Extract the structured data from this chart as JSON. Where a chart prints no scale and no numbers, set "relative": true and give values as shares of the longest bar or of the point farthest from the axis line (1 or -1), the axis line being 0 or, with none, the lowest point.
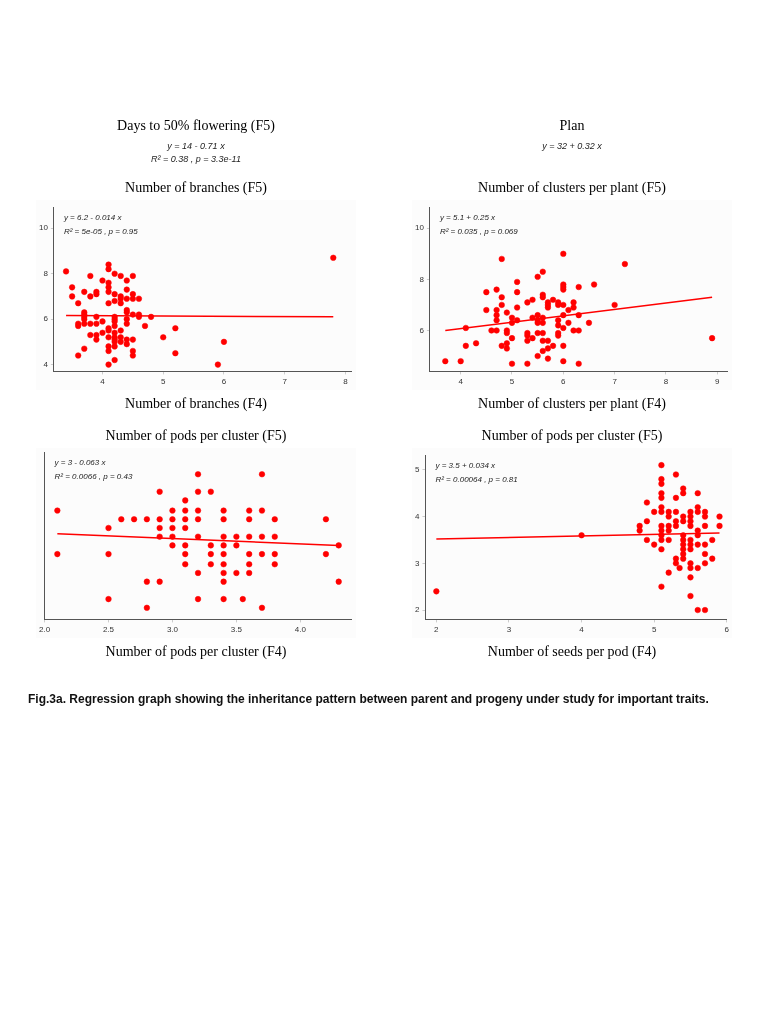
{
  "chart_data": [
    {
      "type": "other",
      "ylabel": "Days to 50% flowering (F5)",
      "annotations": [
        "y = 14 - 0.71 x",
        "R² = 0.38 , p = 3.3e-11"
      ]
    },
    {
      "type": "other",
      "ylabel": "Plan",
      "annotations": [
        "y = 32 + 0.32 x"
      ]
    },
    {
      "type": "scatter",
      "ylabel": "Number of branches (F5)",
      "xlabel": "Number of branches (F4)",
      "xlim": [
        3.2,
        8.1
      ],
      "xticks": [
        4,
        5,
        6,
        7,
        8
      ],
      "ylim": [
        3.7,
        10.9
      ],
      "yticks": [
        4,
        6,
        8,
        10
      ],
      "marker": "circle",
      "annotations": [
        "y = 6.2 - 0.014 x",
        "R² = 5e-05 , p = 0.95"
      ],
      "series": [
        {
          "type": "scatter",
          "color": "#ff0000",
          "x": [
            3.4,
            3.5,
            3.5,
            3.6,
            3.6,
            3.6,
            3.6,
            3.7,
            3.7,
            3.7,
            3.7,
            3.7,
            3.7,
            3.7,
            3.8,
            3.8,
            3.8,
            3.8,
            3.9,
            3.9,
            3.9,
            3.9,
            3.9,
            3.9,
            4.0,
            4.0,
            4.0,
            4.1,
            4.1,
            4.1,
            4.1,
            4.1,
            4.1,
            4.1,
            4.1,
            4.1,
            4.1,
            4.1,
            4.1,
            4.2,
            4.2,
            4.2,
            4.2,
            4.2,
            4.2,
            4.2,
            4.2,
            4.2,
            4.2,
            4.2,
            4.2,
            4.2,
            4.3,
            4.3,
            4.3,
            4.3,
            4.3,
            4.3,
            4.3,
            4.4,
            4.4,
            4.4,
            4.4,
            4.4,
            4.4,
            4.4,
            4.4,
            4.4,
            4.5,
            4.5,
            4.5,
            4.5,
            4.5,
            4.5,
            4.5,
            4.6,
            4.6,
            4.6,
            4.7,
            4.8,
            5.0,
            5.2,
            5.2,
            6.0,
            5.9,
            7.8
          ],
          "values": [
            8.1,
            7.4,
            7.0,
            6.7,
            5.8,
            5.7,
            4.4,
            7.2,
            6.3,
            6.2,
            6.1,
            6.0,
            5.8,
            4.7,
            7.9,
            7.0,
            5.8,
            5.3,
            7.2,
            7.1,
            6.1,
            5.8,
            5.3,
            5.1,
            7.7,
            5.9,
            5.4,
            8.4,
            8.2,
            7.6,
            7.4,
            7.2,
            6.7,
            5.6,
            5.5,
            5.2,
            4.8,
            4.6,
            4.0,
            8.0,
            7.1,
            6.8,
            6.1,
            6.0,
            5.9,
            5.7,
            5.4,
            5.2,
            5.1,
            5.0,
            4.8,
            4.2,
            7.9,
            7.0,
            6.9,
            6.7,
            5.5,
            5.2,
            5.0,
            7.7,
            7.3,
            6.9,
            6.4,
            6.3,
            6.0,
            5.8,
            5.1,
            4.9,
            7.9,
            7.1,
            6.9,
            6.2,
            5.1,
            4.6,
            4.4,
            6.9,
            6.2,
            6.1,
            5.7,
            6.1,
            5.2,
            5.6,
            4.5,
            5.0,
            4.0,
            8.7
          ]
        },
        {
          "type": "line",
          "marker": "none",
          "color": "#ff0000",
          "x": [
            3.4,
            7.8
          ],
          "values": [
            6.16,
            6.1
          ]
        }
      ]
    },
    {
      "type": "scatter",
      "ylabel": "Number of clusters per plant (F5)",
      "xlabel": "Number of clusters per plant (F4)",
      "xlim": [
        3.4,
        9.2
      ],
      "xticks": [
        4,
        5,
        6,
        7,
        8,
        9
      ],
      "ylim": [
        4.4,
        10.8
      ],
      "yticks": [
        6,
        8,
        10
      ],
      "marker": "circle",
      "annotations": [
        "y = 5.1 + 0.25 x",
        "R² = 0.035 , p = 0.069"
      ],
      "series": [
        {
          "type": "scatter",
          "color": "#ff0000",
          "x": [
            3.7,
            4.0,
            4.1,
            4.1,
            4.3,
            4.5,
            4.5,
            4.6,
            4.7,
            4.7,
            4.7,
            4.7,
            4.7,
            4.8,
            4.8,
            4.8,
            4.8,
            4.9,
            4.9,
            4.9,
            4.9,
            4.9,
            5.0,
            5.0,
            5.0,
            5.0,
            5.1,
            5.1,
            5.1,
            5.1,
            5.3,
            5.3,
            5.3,
            5.3,
            5.3,
            5.4,
            5.4,
            5.4,
            5.5,
            5.5,
            5.5,
            5.5,
            5.5,
            5.5,
            5.6,
            5.6,
            5.6,
            5.6,
            5.6,
            5.6,
            5.6,
            5.6,
            5.7,
            5.7,
            5.7,
            5.7,
            5.7,
            5.7,
            5.8,
            5.8,
            5.9,
            5.9,
            5.9,
            5.9,
            5.9,
            5.9,
            6.0,
            6.0,
            6.0,
            6.0,
            6.0,
            6.0,
            6.0,
            6.0,
            6.0,
            6.1,
            6.1,
            6.2,
            6.2,
            6.2,
            6.3,
            6.3,
            6.3,
            6.3,
            6.5,
            6.6,
            7.0,
            7.2,
            8.9
          ],
          "values": [
            4.8,
            4.8,
            6.1,
            5.4,
            5.5,
            7.5,
            6.8,
            6.0,
            7.6,
            6.8,
            6.6,
            6.4,
            6.0,
            8.8,
            7.3,
            7.0,
            5.4,
            6.7,
            6.0,
            5.9,
            5.5,
            5.3,
            6.5,
            6.3,
            5.7,
            4.7,
            7.9,
            7.5,
            6.9,
            6.4,
            7.1,
            5.9,
            5.8,
            5.6,
            4.7,
            7.2,
            6.5,
            5.7,
            8.1,
            6.6,
            6.4,
            6.3,
            5.9,
            5.0,
            8.3,
            7.4,
            7.3,
            6.5,
            6.3,
            5.9,
            5.6,
            5.2,
            7.1,
            7.0,
            6.9,
            5.6,
            5.3,
            4.9,
            7.2,
            5.4,
            7.1,
            7.0,
            6.4,
            6.2,
            5.9,
            5.8,
            9.0,
            7.8,
            7.7,
            7.6,
            7.0,
            6.6,
            6.1,
            5.4,
            4.8,
            6.8,
            6.3,
            7.1,
            6.9,
            6.0,
            7.7,
            6.6,
            6.0,
            4.7,
            6.3,
            7.8,
            7.0,
            8.6,
            5.7
          ]
        },
        {
          "type": "line",
          "marker": "none",
          "color": "#ff0000",
          "x": [
            3.7,
            8.9
          ],
          "values": [
            6.0,
            7.3
          ]
        }
      ]
    },
    {
      "type": "scatter",
      "ylabel": "Number of pods per cluster (F5)",
      "xlabel": "Number of pods per cluster (F4)",
      "xlim": [
        2.0,
        4.4
      ],
      "xticks": [
        {
          "value": 2,
          "label": "2.0"
        },
        2.5,
        {
          "value": 3,
          "label": "3.0"
        },
        3.5,
        {
          "value": 4,
          "label": "4.0"
        }
      ],
      "relative": true,
      "marker": "circle",
      "annotations": [
        "y = 3 - 0.063 x",
        "R² = 0.0066 , p = 0.43"
      ],
      "series": [
        {
          "type": "scatter",
          "color": "#ff0000",
          "x": [
            2.1,
            2.1,
            2.5,
            2.5,
            2.5,
            2.6,
            2.7,
            2.8,
            2.8,
            2.8,
            2.9,
            2.9,
            2.9,
            2.9,
            2.9,
            3.0,
            3.0,
            3.0,
            3.0,
            3.0,
            3.1,
            3.1,
            3.1,
            3.1,
            3.1,
            3.1,
            3.1,
            3.2,
            3.2,
            3.2,
            3.2,
            3.2,
            3.2,
            3.2,
            3.3,
            3.3,
            3.3,
            3.3,
            3.4,
            3.4,
            3.4,
            3.4,
            3.4,
            3.4,
            3.4,
            3.4,
            3.4,
            3.5,
            3.5,
            3.5,
            3.55,
            3.6,
            3.6,
            3.6,
            3.6,
            3.6,
            3.6,
            3.7,
            3.7,
            3.7,
            3.7,
            3.7,
            3.8,
            3.8,
            3.8,
            3.8,
            4.2,
            4.2,
            4.3,
            4.3
          ],
          "values": [
            0.75,
            0.45,
            0.63,
            0.45,
            0.14,
            0.69,
            0.69,
            0.69,
            0.26,
            0.08,
            0.88,
            0.69,
            0.63,
            0.57,
            0.26,
            0.75,
            0.69,
            0.63,
            0.57,
            0.51,
            0.82,
            0.75,
            0.69,
            0.63,
            0.51,
            0.45,
            0.38,
            1,
            0.88,
            0.75,
            0.69,
            0.57,
            0.32,
            0.14,
            0.88,
            0.51,
            0.45,
            0.38,
            0.75,
            0.69,
            0.57,
            0.51,
            0.45,
            0.38,
            0.32,
            0.26,
            0.14,
            0.57,
            0.51,
            0.32,
            0.14,
            0.75,
            0.69,
            0.57,
            0.45,
            0.38,
            0.32,
            1,
            0.75,
            0.57,
            0.45,
            0.08,
            0.69,
            0.57,
            0.45,
            0.38,
            0.69,
            0.45,
            0.51,
            0.26
          ]
        },
        {
          "type": "line",
          "marker": "none",
          "color": "#ff0000",
          "x": [
            2.1,
            4.3
          ],
          "values": [
            0.59,
            0.51
          ]
        }
      ]
    },
    {
      "type": "scatter",
      "ylabel": "Number of pods per cluster (F5)",
      "xlabel": "Number of seeds per pod (F4)",
      "xlim": [
        1.85,
        6.0
      ],
      "xticks": [
        2,
        3,
        4,
        5,
        6
      ],
      "ylim": [
        1.8,
        5.3
      ],
      "yticks": [
        2,
        3,
        4,
        5
      ],
      "marker": "circle",
      "annotations": [
        "y = 3.5 + 0.034 x",
        "R² = 0.00064 , p = 0.81"
      ],
      "series": [
        {
          "type": "scatter",
          "color": "#ff0000",
          "x": [
            2,
            4,
            4.8,
            4.8,
            4.9,
            4.9,
            4.9,
            5.0,
            5.0,
            5.1,
            5.1,
            5.1,
            5.1,
            5.1,
            5.1,
            5.1,
            5.1,
            5.1,
            5.1,
            5.1,
            5.1,
            5.1,
            5.2,
            5.2,
            5.2,
            5.2,
            5.2,
            5.2,
            5.3,
            5.3,
            5.3,
            5.3,
            5.3,
            5.3,
            5.3,
            5.35,
            5.4,
            5.4,
            5.4,
            5.4,
            5.4,
            5.4,
            5.4,
            5.4,
            5.4,
            5.4,
            5.5,
            5.5,
            5.5,
            5.5,
            5.5,
            5.5,
            5.5,
            5.5,
            5.5,
            5.5,
            5.5,
            5.6,
            5.6,
            5.6,
            5.6,
            5.6,
            5.6,
            5.6,
            5.6,
            5.7,
            5.7,
            5.7,
            5.7,
            5.7,
            5.7,
            5.7,
            5.8,
            5.8,
            5.9,
            5.9
          ],
          "values": [
            2.4,
            3.6,
            3.8,
            3.7,
            4.3,
            3.9,
            3.5,
            4.1,
            3.4,
            5.1,
            4.8,
            4.7,
            4.5,
            4.4,
            4.2,
            4.1,
            3.8,
            3.7,
            3.6,
            3.5,
            3.3,
            2.5,
            4.1,
            4.0,
            3.8,
            3.7,
            3.5,
            2.8,
            4.9,
            4.4,
            4.1,
            3.9,
            3.8,
            3.1,
            3.0,
            2.9,
            4.6,
            4.5,
            4.0,
            3.9,
            3.6,
            3.5,
            3.4,
            3.3,
            3.2,
            3.1,
            4.1,
            4.0,
            3.9,
            3.8,
            3.5,
            3.4,
            3.3,
            3.0,
            2.9,
            2.7,
            2.3,
            4.5,
            4.2,
            4.1,
            3.7,
            3.6,
            3.4,
            2.9,
            2.0,
            4.1,
            4.0,
            3.8,
            3.4,
            3.2,
            3.0,
            2.0,
            3.5,
            3.1,
            4.0,
            3.8
          ]
        },
        {
          "type": "line",
          "marker": "none",
          "color": "#ff0000",
          "x": [
            2,
            5.9
          ],
          "values": [
            3.52,
            3.65
          ]
        }
      ]
    },
    {
      "type": "other",
      "title": "Fig.3a. Regression graph showing the inheritance pattern between parent and progeny under study for important traits."
    }
  ]
}
